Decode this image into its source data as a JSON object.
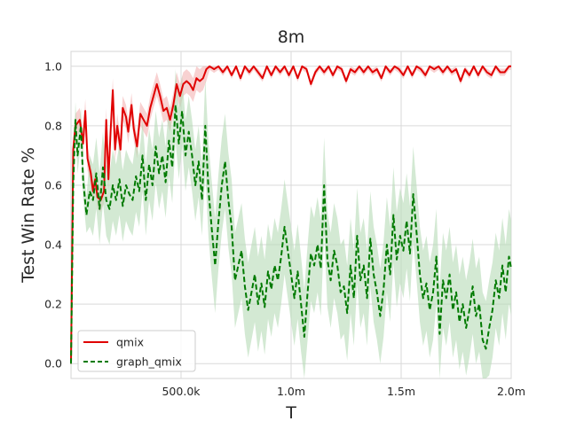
{
  "chart_data": {
    "type": "line",
    "title": "8m",
    "xlabel": "T",
    "ylabel": "Test Win Rate %",
    "xlim": [
      0,
      2000000
    ],
    "ylim": [
      -0.05,
      1.05
    ],
    "xticks": [
      500000,
      1000000,
      1500000,
      2000000
    ],
    "xtick_labels": [
      "500.0k",
      "1.0m",
      "1.5m",
      "2.0m"
    ],
    "yticks": [
      0.0,
      0.2,
      0.4,
      0.6,
      0.8,
      1.0
    ],
    "ytick_labels": [
      "0.0",
      "0.2",
      "0.4",
      "0.6",
      "0.8",
      "1.0"
    ],
    "grid": true,
    "legend_position": "lower-left",
    "series": [
      {
        "name": "qmix",
        "color": "#e00000",
        "linestyle": "solid",
        "band_color": "#f4b3b3",
        "points": [
          [
            0,
            0.0
          ],
          [
            10000,
            0.72
          ],
          [
            20000,
            0.8
          ],
          [
            40000,
            0.82
          ],
          [
            55000,
            0.74
          ],
          [
            65000,
            0.85
          ],
          [
            75000,
            0.69
          ],
          [
            90000,
            0.64
          ],
          [
            100000,
            0.58
          ],
          [
            110000,
            0.62
          ],
          [
            120000,
            0.56
          ],
          [
            135000,
            0.55
          ],
          [
            150000,
            0.58
          ],
          [
            160000,
            0.82
          ],
          [
            170000,
            0.62
          ],
          [
            180000,
            0.78
          ],
          [
            190000,
            0.92
          ],
          [
            200000,
            0.72
          ],
          [
            210000,
            0.8
          ],
          [
            225000,
            0.72
          ],
          [
            235000,
            0.86
          ],
          [
            250000,
            0.83
          ],
          [
            260000,
            0.78
          ],
          [
            275000,
            0.87
          ],
          [
            285000,
            0.79
          ],
          [
            300000,
            0.73
          ],
          [
            315000,
            0.84
          ],
          [
            330000,
            0.82
          ],
          [
            345000,
            0.8
          ],
          [
            360000,
            0.86
          ],
          [
            375000,
            0.9
          ],
          [
            390000,
            0.94
          ],
          [
            405000,
            0.9
          ],
          [
            420000,
            0.85
          ],
          [
            435000,
            0.86
          ],
          [
            450000,
            0.82
          ],
          [
            465000,
            0.87
          ],
          [
            480000,
            0.94
          ],
          [
            495000,
            0.9
          ],
          [
            510000,
            0.94
          ],
          [
            525000,
            0.95
          ],
          [
            540000,
            0.94
          ],
          [
            555000,
            0.92
          ],
          [
            570000,
            0.96
          ],
          [
            585000,
            0.95
          ],
          [
            600000,
            0.96
          ],
          [
            615000,
            0.99
          ],
          [
            630000,
            1.0
          ],
          [
            650000,
            0.99
          ],
          [
            670000,
            1.0
          ],
          [
            690000,
            0.98
          ],
          [
            710000,
            1.0
          ],
          [
            730000,
            0.97
          ],
          [
            750000,
            1.0
          ],
          [
            770000,
            0.96
          ],
          [
            790000,
            1.0
          ],
          [
            810000,
            0.98
          ],
          [
            830000,
            1.0
          ],
          [
            850000,
            0.98
          ],
          [
            870000,
            0.96
          ],
          [
            890000,
            1.0
          ],
          [
            910000,
            0.97
          ],
          [
            930000,
            1.0
          ],
          [
            950000,
            0.98
          ],
          [
            970000,
            1.0
          ],
          [
            990000,
            0.97
          ],
          [
            1010000,
            1.0
          ],
          [
            1030000,
            0.96
          ],
          [
            1050000,
            1.0
          ],
          [
            1070000,
            0.99
          ],
          [
            1090000,
            0.94
          ],
          [
            1110000,
            0.98
          ],
          [
            1130000,
            1.0
          ],
          [
            1150000,
            0.98
          ],
          [
            1170000,
            1.0
          ],
          [
            1190000,
            0.97
          ],
          [
            1210000,
            1.0
          ],
          [
            1230000,
            0.99
          ],
          [
            1250000,
            0.95
          ],
          [
            1270000,
            0.99
          ],
          [
            1290000,
            0.98
          ],
          [
            1310000,
            1.0
          ],
          [
            1330000,
            0.98
          ],
          [
            1350000,
            1.0
          ],
          [
            1370000,
            0.98
          ],
          [
            1390000,
            0.99
          ],
          [
            1410000,
            0.96
          ],
          [
            1430000,
            1.0
          ],
          [
            1450000,
            0.98
          ],
          [
            1470000,
            1.0
          ],
          [
            1490000,
            0.99
          ],
          [
            1510000,
            0.97
          ],
          [
            1530000,
            1.0
          ],
          [
            1550000,
            0.97
          ],
          [
            1570000,
            1.0
          ],
          [
            1590000,
            0.99
          ],
          [
            1610000,
            0.97
          ],
          [
            1630000,
            1.0
          ],
          [
            1650000,
            0.99
          ],
          [
            1670000,
            1.0
          ],
          [
            1690000,
            0.98
          ],
          [
            1710000,
            1.0
          ],
          [
            1730000,
            0.98
          ],
          [
            1750000,
            0.99
          ],
          [
            1770000,
            0.95
          ],
          [
            1790000,
            0.99
          ],
          [
            1810000,
            0.97
          ],
          [
            1830000,
            1.0
          ],
          [
            1850000,
            0.97
          ],
          [
            1870000,
            1.0
          ],
          [
            1890000,
            0.98
          ],
          [
            1910000,
            0.97
          ],
          [
            1930000,
            1.0
          ],
          [
            1950000,
            0.98
          ],
          [
            1970000,
            0.98
          ],
          [
            1990000,
            1.0
          ],
          [
            2000000,
            1.0
          ]
        ]
      },
      {
        "name": "graph_qmix",
        "color": "#007a00",
        "linestyle": "dashed",
        "band_color": "#b5dab5",
        "points": [
          [
            0,
            0.0
          ],
          [
            10000,
            0.6
          ],
          [
            20000,
            0.82
          ],
          [
            30000,
            0.7
          ],
          [
            45000,
            0.8
          ],
          [
            55000,
            0.62
          ],
          [
            70000,
            0.5
          ],
          [
            85000,
            0.58
          ],
          [
            100000,
            0.55
          ],
          [
            115000,
            0.64
          ],
          [
            130000,
            0.52
          ],
          [
            145000,
            0.66
          ],
          [
            160000,
            0.55
          ],
          [
            175000,
            0.52
          ],
          [
            190000,
            0.6
          ],
          [
            205000,
            0.55
          ],
          [
            220000,
            0.62
          ],
          [
            235000,
            0.53
          ],
          [
            250000,
            0.6
          ],
          [
            265000,
            0.57
          ],
          [
            280000,
            0.55
          ],
          [
            295000,
            0.63
          ],
          [
            310000,
            0.58
          ],
          [
            325000,
            0.7
          ],
          [
            340000,
            0.55
          ],
          [
            355000,
            0.67
          ],
          [
            370000,
            0.6
          ],
          [
            385000,
            0.73
          ],
          [
            400000,
            0.64
          ],
          [
            415000,
            0.7
          ],
          [
            430000,
            0.61
          ],
          [
            445000,
            0.75
          ],
          [
            460000,
            0.66
          ],
          [
            475000,
            0.87
          ],
          [
            490000,
            0.74
          ],
          [
            505000,
            0.85
          ],
          [
            520000,
            0.7
          ],
          [
            535000,
            0.78
          ],
          [
            550000,
            0.7
          ],
          [
            565000,
            0.6
          ],
          [
            580000,
            0.68
          ],
          [
            595000,
            0.55
          ],
          [
            610000,
            0.8
          ],
          [
            625000,
            0.58
          ],
          [
            640000,
            0.45
          ],
          [
            655000,
            0.33
          ],
          [
            670000,
            0.48
          ],
          [
            685000,
            0.6
          ],
          [
            700000,
            0.68
          ],
          [
            715000,
            0.55
          ],
          [
            730000,
            0.46
          ],
          [
            745000,
            0.28
          ],
          [
            760000,
            0.33
          ],
          [
            775000,
            0.38
          ],
          [
            790000,
            0.26
          ],
          [
            805000,
            0.18
          ],
          [
            820000,
            0.24
          ],
          [
            835000,
            0.3
          ],
          [
            850000,
            0.2
          ],
          [
            865000,
            0.27
          ],
          [
            880000,
            0.19
          ],
          [
            895000,
            0.31
          ],
          [
            910000,
            0.25
          ],
          [
            925000,
            0.33
          ],
          [
            940000,
            0.28
          ],
          [
            955000,
            0.36
          ],
          [
            970000,
            0.46
          ],
          [
            985000,
            0.38
          ],
          [
            1000000,
            0.3
          ],
          [
            1015000,
            0.22
          ],
          [
            1030000,
            0.31
          ],
          [
            1045000,
            0.2
          ],
          [
            1060000,
            0.09
          ],
          [
            1075000,
            0.24
          ],
          [
            1090000,
            0.37
          ],
          [
            1105000,
            0.33
          ],
          [
            1120000,
            0.4
          ],
          [
            1135000,
            0.32
          ],
          [
            1150000,
            0.6
          ],
          [
            1165000,
            0.35
          ],
          [
            1180000,
            0.28
          ],
          [
            1195000,
            0.38
          ],
          [
            1210000,
            0.33
          ],
          [
            1225000,
            0.24
          ],
          [
            1240000,
            0.26
          ],
          [
            1255000,
            0.17
          ],
          [
            1270000,
            0.33
          ],
          [
            1285000,
            0.22
          ],
          [
            1300000,
            0.43
          ],
          [
            1315000,
            0.28
          ],
          [
            1330000,
            0.33
          ],
          [
            1345000,
            0.22
          ],
          [
            1360000,
            0.42
          ],
          [
            1375000,
            0.3
          ],
          [
            1390000,
            0.24
          ],
          [
            1405000,
            0.16
          ],
          [
            1420000,
            0.25
          ],
          [
            1435000,
            0.4
          ],
          [
            1450000,
            0.3
          ],
          [
            1465000,
            0.5
          ],
          [
            1480000,
            0.35
          ],
          [
            1495000,
            0.43
          ],
          [
            1510000,
            0.38
          ],
          [
            1525000,
            0.48
          ],
          [
            1540000,
            0.37
          ],
          [
            1555000,
            0.57
          ],
          [
            1570000,
            0.44
          ],
          [
            1585000,
            0.3
          ],
          [
            1600000,
            0.22
          ],
          [
            1615000,
            0.27
          ],
          [
            1630000,
            0.18
          ],
          [
            1645000,
            0.24
          ],
          [
            1660000,
            0.36
          ],
          [
            1675000,
            0.1
          ],
          [
            1690000,
            0.28
          ],
          [
            1705000,
            0.22
          ],
          [
            1720000,
            0.3
          ],
          [
            1735000,
            0.18
          ],
          [
            1750000,
            0.24
          ],
          [
            1765000,
            0.14
          ],
          [
            1780000,
            0.2
          ],
          [
            1795000,
            0.12
          ],
          [
            1810000,
            0.18
          ],
          [
            1825000,
            0.26
          ],
          [
            1840000,
            0.16
          ],
          [
            1855000,
            0.2
          ],
          [
            1870000,
            0.08
          ],
          [
            1885000,
            0.05
          ],
          [
            1900000,
            0.12
          ],
          [
            1915000,
            0.18
          ],
          [
            1930000,
            0.28
          ],
          [
            1945000,
            0.22
          ],
          [
            1960000,
            0.33
          ],
          [
            1975000,
            0.24
          ],
          [
            1990000,
            0.36
          ],
          [
            2000000,
            0.32
          ]
        ]
      }
    ]
  }
}
